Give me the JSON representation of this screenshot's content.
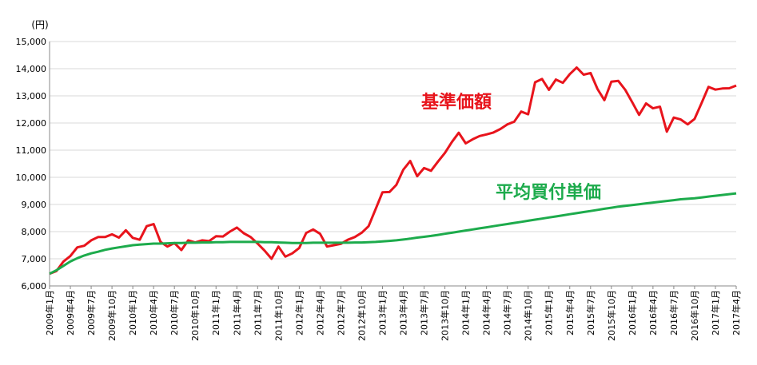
{
  "chart_data": {
    "type": "line",
    "y_unit": "(円)",
    "ylim": [
      6000,
      15000
    ],
    "y_ticks": [
      "6,000",
      "7,000",
      "8,000",
      "9,000",
      "10,000",
      "11,000",
      "12,000",
      "13,000",
      "14,000",
      "15,000"
    ],
    "y_tick_values": [
      6000,
      7000,
      8000,
      9000,
      10000,
      11000,
      12000,
      13000,
      14000,
      15000
    ],
    "grid": true,
    "x_tick_labels": [
      "2009年1月",
      "2009年4月",
      "2009年7月",
      "2009年10月",
      "2010年1月",
      "2010年4月",
      "2010年7月",
      "2010年10月",
      "2011年1月",
      "2011年4月",
      "2011年7月",
      "2011年10月",
      "2012年1月",
      "2012年4月",
      "2012年7月",
      "2012年10月",
      "2013年1月",
      "2013年4月",
      "2013年7月",
      "2013年10月",
      "2014年1月",
      "2014年4月",
      "2014年7月",
      "2014年10月",
      "2015年1月",
      "2015年4月",
      "2015年7月",
      "2015年10月",
      "2016年1月",
      "2016年4月",
      "2016年7月",
      "2016年10月",
      "2017年1月",
      "2017年4月"
    ],
    "series": [
      {
        "name": "基準価額",
        "color": "#e8141c",
        "values": [
          6450,
          6550,
          6900,
          7100,
          7420,
          7480,
          7680,
          7800,
          7800,
          7900,
          7780,
          8050,
          7770,
          7700,
          8200,
          8280,
          7620,
          7450,
          7580,
          7320,
          7680,
          7600,
          7680,
          7650,
          7830,
          7820,
          8000,
          8150,
          7940,
          7800,
          7560,
          7300,
          7000,
          7450,
          7080,
          7200,
          7400,
          7950,
          8080,
          7920,
          7450,
          7500,
          7550,
          7700,
          7800,
          7960,
          8200,
          8820,
          9450,
          9460,
          9720,
          10280,
          10600,
          10040,
          10340,
          10240,
          10580,
          10900,
          11300,
          11640,
          11250,
          11400,
          11520,
          11580,
          11650,
          11780,
          11950,
          12050,
          12420,
          12320,
          13500,
          13620,
          13220,
          13600,
          13480,
          13800,
          14040,
          13780,
          13840,
          13250,
          12840,
          13520,
          13550,
          13220,
          12770,
          12300,
          12720,
          12540,
          12600,
          11680,
          12200,
          12130,
          11950,
          12150,
          12730,
          13330,
          13230,
          13270,
          13280,
          13380
        ]
      },
      {
        "name": "平均買付単価",
        "color": "#1dab4c",
        "values": [
          6450,
          6580,
          6740,
          6900,
          7020,
          7120,
          7200,
          7260,
          7330,
          7380,
          7420,
          7460,
          7500,
          7520,
          7540,
          7560,
          7560,
          7570,
          7580,
          7580,
          7590,
          7590,
          7600,
          7600,
          7610,
          7610,
          7620,
          7620,
          7620,
          7620,
          7620,
          7610,
          7610,
          7600,
          7590,
          7580,
          7580,
          7580,
          7590,
          7590,
          7590,
          7590,
          7590,
          7590,
          7600,
          7600,
          7610,
          7620,
          7640,
          7660,
          7680,
          7710,
          7740,
          7780,
          7810,
          7840,
          7880,
          7920,
          7960,
          8000,
          8040,
          8080,
          8120,
          8160,
          8200,
          8240,
          8280,
          8320,
          8360,
          8400,
          8440,
          8480,
          8520,
          8560,
          8600,
          8640,
          8680,
          8720,
          8760,
          8800,
          8840,
          8880,
          8920,
          8950,
          8980,
          9010,
          9040,
          9070,
          9100,
          9130,
          9160,
          9190,
          9210,
          9230,
          9260,
          9290,
          9320,
          9350,
          9380,
          9410
        ]
      }
    ]
  }
}
